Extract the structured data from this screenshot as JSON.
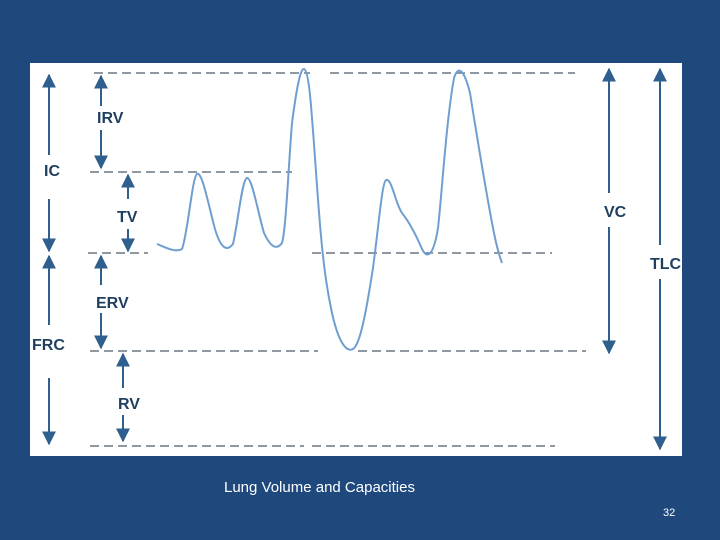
{
  "diagram": {
    "labels": {
      "irv": "IRV",
      "ic": "IC",
      "tv": "TV",
      "erv": "ERV",
      "frc": "FRC",
      "rv": "RV",
      "vc": "VC",
      "tlc": "TLC"
    },
    "colors": {
      "background": "#1f497d",
      "panel": "#ffffff",
      "trace": "#6f9fd0",
      "arrow": "#2f5f8f",
      "text": "#1f3f5f"
    }
  },
  "caption": "Lung Volume and Capacities",
  "page_number": "32"
}
